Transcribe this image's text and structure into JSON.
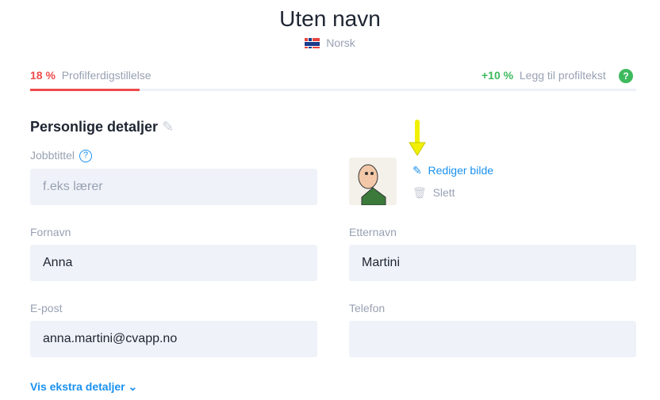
{
  "header": {
    "title": "Uten navn",
    "language": "Norsk"
  },
  "progress": {
    "percent_label": "18 %",
    "label": "Profilferdigstillelse",
    "value": 18,
    "tip_percent": "+10 %",
    "tip_label": "Legg til profiltekst"
  },
  "section": {
    "title": "Personlige detaljer"
  },
  "fields": {
    "job_title": {
      "label": "Jobbtittel",
      "placeholder": "f.eks lærer"
    },
    "first_name": {
      "label": "Fornavn",
      "value": "Anna"
    },
    "last_name": {
      "label": "Etternavn",
      "value": "Martini"
    },
    "email": {
      "label": "E-post",
      "value": "anna.martini@cvapp.no"
    },
    "phone": {
      "label": "Telefon",
      "value": ""
    }
  },
  "photo": {
    "edit_label": "Rediger bilde",
    "delete_label": "Slett"
  },
  "more_details": "Vis ekstra detaljer",
  "colors": {
    "accent": "#1a91f0",
    "progress": "#ef4b4b",
    "tip": "#3dba5d",
    "annotation_arrow": "#f0f000"
  }
}
